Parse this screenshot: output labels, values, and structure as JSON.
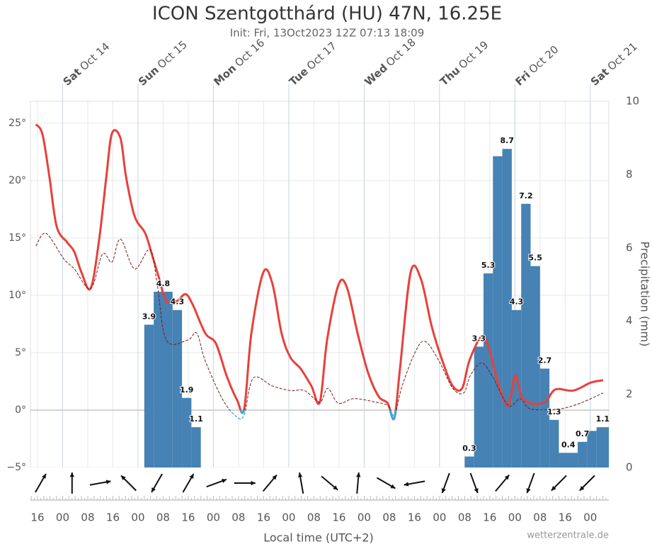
{
  "chart_data": {
    "type": "line",
    "title": "ICON Szentgotthárd (HU) 47N, 16.25E",
    "subtitle": "Init: Fri, 13Oct2023 12Z 07:13 18:09",
    "xlabel": "Local time (UTC+2)",
    "y2label": "Precipitation (mm)",
    "credit": "wetterzentrale.de",
    "xlim": [
      13.75,
      197.9
    ],
    "xticks": [
      {
        "value": 16,
        "label": "16"
      },
      {
        "value": 24,
        "label": "00"
      },
      {
        "value": 32,
        "label": "08"
      },
      {
        "value": 40,
        "label": "16"
      },
      {
        "value": 48,
        "label": "00"
      },
      {
        "value": 56,
        "label": "08"
      },
      {
        "value": 64,
        "label": "16"
      },
      {
        "value": 72,
        "label": "00"
      },
      {
        "value": 80,
        "label": "08"
      },
      {
        "value": 88,
        "label": "16"
      },
      {
        "value": 96,
        "label": "00"
      },
      {
        "value": 104,
        "label": "08"
      },
      {
        "value": 112,
        "label": "16"
      },
      {
        "value": 120,
        "label": "00"
      },
      {
        "value": 128,
        "label": "08"
      },
      {
        "value": 136,
        "label": "16"
      },
      {
        "value": 144,
        "label": "00"
      },
      {
        "value": 152,
        "label": "08"
      },
      {
        "value": 160,
        "label": "16"
      },
      {
        "value": 168,
        "label": "00"
      },
      {
        "value": 176,
        "label": "08"
      },
      {
        "value": 184,
        "label": "16"
      },
      {
        "value": 192,
        "label": "00"
      }
    ],
    "day_ticks": [
      {
        "value": 24,
        "day": "Sat",
        "date": "Oct 14"
      },
      {
        "value": 48,
        "day": "Sun",
        "date": "Oct 15"
      },
      {
        "value": 72,
        "day": "Mon",
        "date": "Oct 16"
      },
      {
        "value": 96,
        "day": "Tue",
        "date": "Oct 17"
      },
      {
        "value": 120,
        "day": "Wed",
        "date": "Oct 18"
      },
      {
        "value": 144,
        "day": "Thu",
        "date": "Oct 19"
      },
      {
        "value": 168,
        "day": "Fri",
        "date": "Oct 20"
      },
      {
        "value": 192,
        "day": "Sat",
        "date": "Oct 21"
      }
    ],
    "ylim": [
      -5,
      26.9
    ],
    "yticks": [
      {
        "value": -5,
        "label": "−5°"
      },
      {
        "value": 0,
        "label": "0°"
      },
      {
        "value": 5,
        "label": "5°"
      },
      {
        "value": 10,
        "label": "10°"
      },
      {
        "value": 15,
        "label": "15°"
      },
      {
        "value": 20,
        "label": "20°"
      },
      {
        "value": 25,
        "label": "25°"
      }
    ],
    "y2lim": [
      0,
      10
    ],
    "y2ticks": [
      0,
      2,
      4,
      6,
      8,
      10
    ],
    "grid": true,
    "below_zero_color": "#3fa9d8",
    "series": [
      {
        "color": "#e8403a",
        "dash": false,
        "x": [
          15.5,
          17.6,
          19.8,
          22.1,
          25.5,
          27.7,
          30,
          32.9,
          35.6,
          37.9,
          39.7,
          42.4,
          44.2,
          46.9,
          50.3,
          52.5,
          54.8,
          57,
          60.4,
          63.1,
          65.4,
          69.4,
          72.8,
          76.2,
          79.5,
          81.8,
          84.1,
          87.9,
          90.8,
          93.7,
          96.5,
          99.8,
          103.2,
          105.9,
          108.2,
          111.8,
          114.5,
          117.9,
          121.2,
          124.6,
          127.5,
          129.6,
          131.4,
          134.8,
          138.1,
          141.5,
          144.9,
          148.2,
          151.2,
          153.5,
          157.3,
          159.6,
          162.9,
          165.9,
          168.1,
          170.1,
          173,
          177.6,
          180.9,
          186.6,
          192.2,
          196.1
        ],
        "values": [
          24.9,
          24.0,
          20.3,
          16.0,
          14.6,
          13.8,
          12.0,
          10.6,
          14.8,
          20.3,
          24.1,
          23.7,
          20.3,
          16.9,
          15.4,
          13.5,
          11.4,
          9.5,
          9.5,
          10.1,
          9.2,
          6.7,
          5.8,
          3.0,
          0.9,
          0.1,
          6.7,
          12.0,
          11.0,
          6.7,
          4.6,
          3.6,
          2.1,
          0.7,
          6.1,
          10.9,
          10.7,
          6.7,
          3.3,
          1.2,
          0.6,
          -0.7,
          3.6,
          12.0,
          11.4,
          7.3,
          4.3,
          2.1,
          1.9,
          4.3,
          6.4,
          5.5,
          2.1,
          0.4,
          3.0,
          1.2,
          0.6,
          0.7,
          1.8,
          1.7,
          2.4,
          2.6
        ]
      },
      {
        "color": "#7a1a1a",
        "dash": true,
        "x": [
          15.5,
          18.7,
          24.3,
          27.7,
          32.9,
          36.7,
          39.7,
          42.4,
          46.9,
          51.8,
          54.1,
          57,
          63.8,
          66.7,
          69.4,
          75,
          79.5,
          81.8,
          84.7,
          90.8,
          96.5,
          101,
          105.9,
          108.4,
          111.8,
          116.7,
          123.5,
          127.5,
          129.6,
          132.1,
          136,
          139.3,
          143.8,
          148.2,
          151.7,
          153.8,
          157.3,
          160.7,
          165.9,
          169.7,
          173,
          182,
          188.8,
          196.1
        ],
        "values": [
          14.3,
          15.4,
          13.2,
          12.3,
          10.6,
          13.6,
          12.9,
          14.9,
          12.3,
          14.0,
          11.0,
          6.1,
          6.1,
          6.7,
          4.3,
          0.9,
          -0.6,
          -0.4,
          2.8,
          2.1,
          1.7,
          1.7,
          0.7,
          1.9,
          0.6,
          1.0,
          0.7,
          0.4,
          -0.4,
          2.1,
          4.9,
          6.0,
          4.3,
          1.9,
          1.5,
          3.0,
          4.1,
          3.0,
          0.4,
          1.0,
          0.1,
          0.1,
          0.6,
          1.5
        ]
      }
    ],
    "precipitation": {
      "axis": "y2",
      "color": "#4682b4",
      "bins": [
        50,
        53,
        59,
        62,
        65,
        68,
        152,
        155,
        158,
        161,
        164,
        167,
        170,
        173,
        176,
        179,
        182,
        188,
        191,
        194,
        197.9
      ],
      "values": [
        3.9,
        4.8,
        4.3,
        1.9,
        1.1,
        0,
        0.3,
        3.3,
        5.3,
        8.5,
        8.7,
        4.3,
        7.2,
        5.5,
        2.7,
        1.3,
        0.4,
        0.7,
        1.0,
        1.1
      ],
      "value_labels": [
        "3.9",
        "4.8",
        "4.3",
        "1.9",
        "1.1",
        null,
        "0.3",
        "3.3",
        "5.3",
        null,
        "8.7",
        "4.3",
        "7.2",
        "5.5",
        "2.7",
        "1.3",
        "0.4",
        "0.7",
        null,
        "1.1"
      ]
    },
    "wind": {
      "color": "#111",
      "x": [
        17,
        27,
        36,
        45,
        54,
        64,
        73,
        82,
        90,
        100,
        109,
        118,
        127,
        136,
        146,
        155,
        164,
        173,
        182,
        191
      ],
      "direction": [
        30,
        0,
        80,
        315,
        210,
        30,
        70,
        90,
        40,
        350,
        130,
        5,
        120,
        260,
        200,
        160,
        40,
        200,
        225,
        225
      ]
    }
  }
}
